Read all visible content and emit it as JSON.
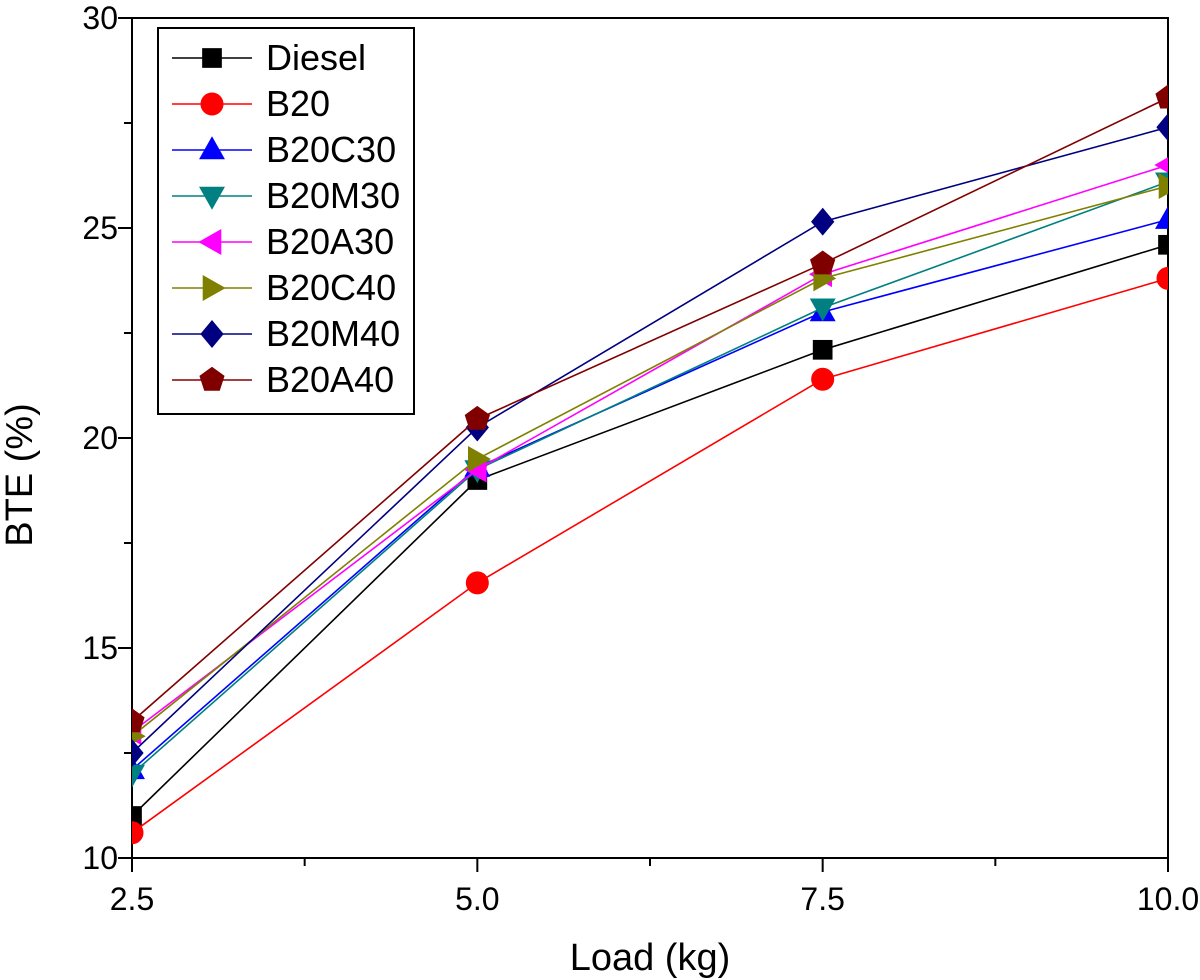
{
  "chart_data": {
    "type": "line",
    "title": "",
    "xlabel": "Load (kg)",
    "ylabel": "BTE (%)",
    "xlim": [
      2.5,
      10.0
    ],
    "ylim": [
      10,
      30
    ],
    "xticks": [
      2.5,
      5.0,
      7.5,
      10.0
    ],
    "xtick_labels": [
      "2.5",
      "5.0",
      "7.5",
      "10.0"
    ],
    "yticks": [
      10,
      15,
      20,
      25,
      30
    ],
    "ytick_labels": [
      "10",
      "15",
      "20",
      "25",
      "30"
    ],
    "x": [
      2.5,
      5.0,
      7.5,
      10.0
    ],
    "grid": false,
    "legend_position": "top-left",
    "series": [
      {
        "name": "Diesel",
        "values": [
          11.0,
          19.0,
          22.1,
          24.6
        ],
        "color": "#000000",
        "marker": "square"
      },
      {
        "name": "B20",
        "values": [
          10.6,
          16.55,
          21.4,
          23.8
        ],
        "color": "#ff0000",
        "marker": "circle"
      },
      {
        "name": "B20C30",
        "values": [
          12.1,
          19.3,
          23.0,
          25.2
        ],
        "color": "#0000ff",
        "marker": "triangle-up"
      },
      {
        "name": "B20M30",
        "values": [
          12.0,
          19.25,
          23.1,
          26.1
        ],
        "color": "#008080",
        "marker": "triangle-down"
      },
      {
        "name": "B20A30",
        "values": [
          13.0,
          19.25,
          23.9,
          26.5
        ],
        "color": "#ff00ff",
        "marker": "triangle-left"
      },
      {
        "name": "B20C40",
        "values": [
          12.9,
          19.5,
          23.8,
          26.0
        ],
        "color": "#808000",
        "marker": "triangle-right"
      },
      {
        "name": "B20M40",
        "values": [
          12.5,
          20.25,
          25.15,
          27.4
        ],
        "color": "#000080",
        "marker": "diamond"
      },
      {
        "name": "B20A40",
        "values": [
          13.25,
          20.45,
          24.15,
          28.1
        ],
        "color": "#800000",
        "marker": "pentagon"
      }
    ]
  }
}
